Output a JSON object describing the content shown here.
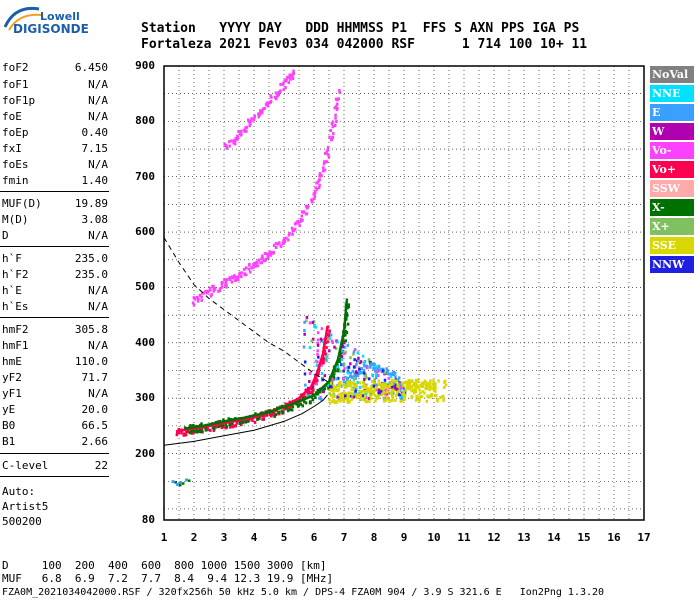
{
  "logo": {
    "top": "Lowell",
    "main": "DIGISONDE"
  },
  "header": {
    "line1": "Station   YYYY DAY   DDD HHMMSS P1  FFS S AXN PPS IGA PS",
    "line2": "Fortaleza 2021 Fev03 034 042000 RSF      1 714 100 10+ 11"
  },
  "params": [
    {
      "k": "foF2",
      "v": "6.450"
    },
    {
      "k": "foF1",
      "v": "N/A"
    },
    {
      "k": "foF1p",
      "v": "N/A"
    },
    {
      "k": "foE",
      "v": "N/A"
    },
    {
      "k": "foEp",
      "v": "0.40"
    },
    {
      "k": "fxI",
      "v": "7.15"
    },
    {
      "k": "foEs",
      "v": "N/A"
    },
    {
      "k": "fmin",
      "v": "1.40"
    },
    {
      "k": "MUF(D)",
      "v": "19.89"
    },
    {
      "k": "M(D)",
      "v": "3.08"
    },
    {
      "k": "D",
      "v": "N/A"
    },
    {
      "k": "h`F",
      "v": "235.0"
    },
    {
      "k": "h`F2",
      "v": "235.0"
    },
    {
      "k": "h`E",
      "v": "N/A"
    },
    {
      "k": "h`Es",
      "v": "N/A"
    },
    {
      "k": "hmF2",
      "v": "305.8"
    },
    {
      "k": "hmF1",
      "v": "N/A"
    },
    {
      "k": "hmE",
      "v": "110.0"
    },
    {
      "k": "yF2",
      "v": "71.7"
    },
    {
      "k": "yF1",
      "v": "N/A"
    },
    {
      "k": "yE",
      "v": "20.0"
    },
    {
      "k": "B0",
      "v": "66.5"
    },
    {
      "k": "B1",
      "v": "2.66"
    },
    {
      "k": "C-level",
      "v": "22"
    }
  ],
  "auto": [
    "Auto:",
    "Artist5",
    "500200"
  ],
  "footer": {
    "d_row": "D     100  200  400  600  800 1000 1500 3000 [km]",
    "muf_row": "MUF   6.8  6.9  7.2  7.7  8.4  9.4 12.3 19.9 [MHz]",
    "file_row": "FZA0M_2021034042000.RSF / 320fx256h 50 kHz 5.0 km / DPS-4 FZA0M 904 / 3.9 S 321.6 E   Ion2Png 1.3.20"
  },
  "legend": [
    {
      "label": "NoVal",
      "color": "#808080"
    },
    {
      "label": "NNE",
      "color": "#00e0ff"
    },
    {
      "label": "E",
      "color": "#3aa0ff"
    },
    {
      "label": "W",
      "color": "#b000b0"
    },
    {
      "label": "Vo-",
      "color": "#ff40ff"
    },
    {
      "label": "Vo+",
      "color": "#ff0050"
    },
    {
      "label": "SSW",
      "color": "#ffaaaa"
    },
    {
      "label": "X-",
      "color": "#007000"
    },
    {
      "label": "X+",
      "color": "#80c060"
    },
    {
      "label": "SSE",
      "color": "#d8d800"
    },
    {
      "label": "NNW",
      "color": "#2020e0"
    }
  ],
  "chart_data": {
    "type": "scatter",
    "xlim": [
      1,
      17
    ],
    "ylim": [
      80,
      900
    ],
    "xticks": [
      1,
      2,
      3,
      4,
      5,
      6,
      7,
      8,
      9,
      10,
      11,
      12,
      13,
      14,
      15,
      16,
      17
    ],
    "yticks": [
      80,
      200,
      300,
      400,
      500,
      600,
      700,
      800,
      900
    ],
    "grid": true,
    "legend_position": "right",
    "traces": [
      {
        "name": "O-trace F2",
        "color": "#ff0050",
        "points": [
          [
            1.4,
            240
          ],
          [
            2,
            245
          ],
          [
            2.5,
            250
          ],
          [
            3,
            255
          ],
          [
            3.5,
            260
          ],
          [
            4,
            265
          ],
          [
            4.5,
            275
          ],
          [
            5,
            285
          ],
          [
            5.5,
            300
          ],
          [
            5.9,
            320
          ],
          [
            6.1,
            345
          ],
          [
            6.3,
            380
          ],
          [
            6.45,
            430
          ]
        ]
      },
      {
        "name": "X-trace F2",
        "color": "#007000",
        "points": [
          [
            1.7,
            245
          ],
          [
            2.3,
            250
          ],
          [
            3,
            258
          ],
          [
            3.7,
            265
          ],
          [
            4.5,
            275
          ],
          [
            5.3,
            290
          ],
          [
            6,
            305
          ],
          [
            6.5,
            330
          ],
          [
            6.8,
            370
          ],
          [
            7.0,
            420
          ],
          [
            7.1,
            480
          ]
        ]
      },
      {
        "name": "Multi-hop O",
        "color": "#ff40ff",
        "points": [
          [
            1.9,
            475
          ],
          [
            2.5,
            495
          ],
          [
            3,
            510
          ],
          [
            3.5,
            525
          ],
          [
            4,
            545
          ],
          [
            4.5,
            565
          ],
          [
            5,
            590
          ],
          [
            5.5,
            625
          ],
          [
            6,
            670
          ],
          [
            6.3,
            720
          ],
          [
            6.6,
            790
          ],
          [
            6.8,
            860
          ]
        ]
      },
      {
        "name": "Third hop",
        "color": "#ff40ff",
        "points": [
          [
            3,
            755
          ],
          [
            3.5,
            780
          ],
          [
            4,
            810
          ],
          [
            4.5,
            840
          ],
          [
            5,
            870
          ],
          [
            5.3,
            895
          ]
        ]
      },
      {
        "name": "Spread SSE",
        "color": "#d8d800",
        "points": [
          [
            6.5,
            300
          ],
          [
            7,
            305
          ],
          [
            7.5,
            310
          ],
          [
            8,
            315
          ],
          [
            8.5,
            320
          ],
          [
            9,
            325
          ],
          [
            9.5,
            330
          ],
          [
            10,
            320
          ]
        ]
      },
      {
        "name": "Spread E",
        "color": "#3aa0ff",
        "points": [
          [
            6.8,
            330
          ],
          [
            7.3,
            345
          ],
          [
            7.8,
            360
          ],
          [
            8.3,
            355
          ],
          [
            8.8,
            340
          ]
        ]
      }
    ],
    "profile_solid": [
      [
        1,
        215
      ],
      [
        2,
        222
      ],
      [
        3,
        232
      ],
      [
        4,
        242
      ],
      [
        5,
        258
      ],
      [
        5.6,
        272
      ],
      [
        6,
        285
      ],
      [
        6.3,
        296
      ],
      [
        6.45,
        306
      ]
    ],
    "profile_dashed": [
      [
        1,
        590
      ],
      [
        1.5,
        545
      ],
      [
        2,
        505
      ],
      [
        2.5,
        480
      ],
      [
        3,
        460
      ],
      [
        3.5,
        440
      ],
      [
        4,
        420
      ],
      [
        4.5,
        400
      ],
      [
        5,
        385
      ],
      [
        5.5,
        365
      ],
      [
        6,
        345
      ],
      [
        6.45,
        330
      ]
    ],
    "isolated": [
      [
        1.25,
        152
      ],
      [
        1.5,
        150
      ],
      [
        1.7,
        155
      ],
      [
        1.4,
        147
      ]
    ]
  }
}
